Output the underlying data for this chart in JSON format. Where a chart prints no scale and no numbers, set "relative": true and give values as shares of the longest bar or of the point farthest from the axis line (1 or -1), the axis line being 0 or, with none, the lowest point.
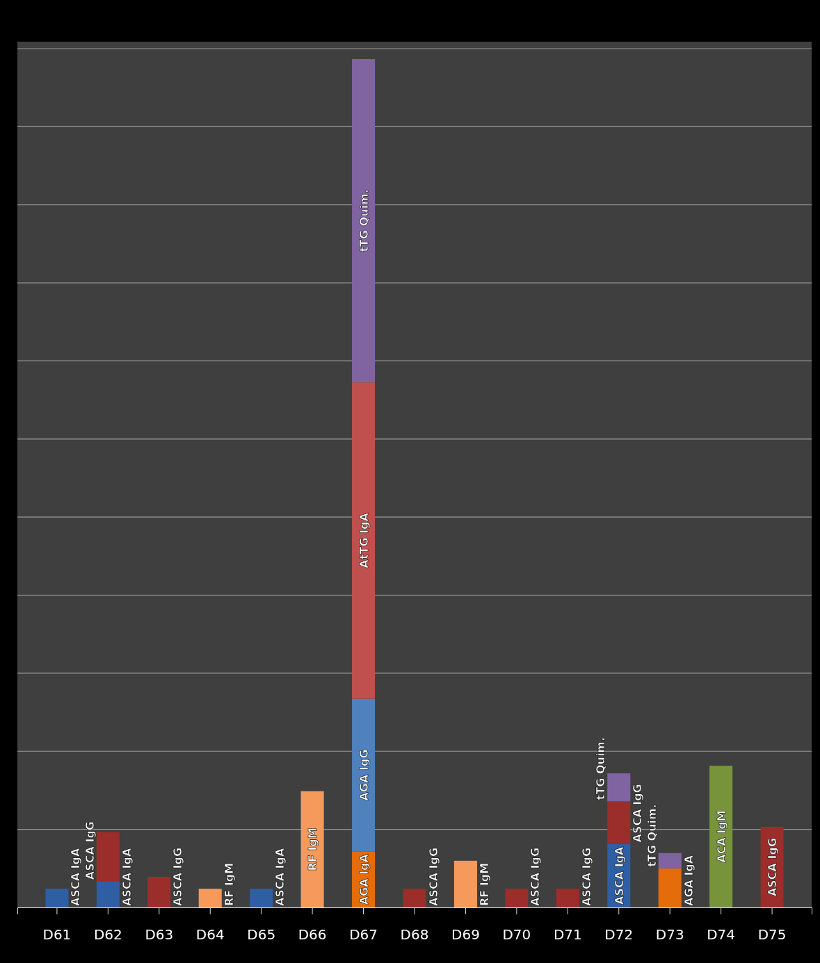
{
  "chart_data": {
    "type": "bar",
    "stacked": true,
    "relative": true,
    "grid": true,
    "legend": false,
    "categories": [
      "D61",
      "D62",
      "D63",
      "D64",
      "D65",
      "D66",
      "D67",
      "D68",
      "D69",
      "D70",
      "D71",
      "D72",
      "D73",
      "D74",
      "D75"
    ],
    "series": [
      {
        "name": "ASCA IgA",
        "color": "#2e5fa3",
        "values": [
          0.022,
          0.031,
          null,
          null,
          0.022,
          null,
          null,
          null,
          null,
          null,
          null,
          0.075,
          null,
          null,
          null
        ]
      },
      {
        "name": "ASCA IgG",
        "color": "#9b2d2a",
        "values": [
          null,
          0.058,
          0.036,
          null,
          null,
          null,
          null,
          0.022,
          null,
          0.022,
          0.022,
          0.05,
          null,
          null,
          0.095
        ]
      },
      {
        "name": "RF IgM",
        "color": "#f59a5a",
        "values": [
          null,
          null,
          null,
          0.022,
          null,
          0.137,
          null,
          null,
          0.055,
          null,
          null,
          null,
          null,
          null,
          null
        ]
      },
      {
        "name": "AGA IgA",
        "color": "#e46c0a",
        "values": [
          null,
          null,
          null,
          null,
          null,
          null,
          0.066,
          null,
          null,
          null,
          null,
          null,
          0.046,
          null,
          null
        ]
      },
      {
        "name": "AGA IgG",
        "color": "#4f81bd",
        "values": [
          null,
          null,
          null,
          null,
          null,
          null,
          0.18,
          null,
          null,
          null,
          null,
          null,
          null,
          null,
          null
        ]
      },
      {
        "name": "AtTG IgA",
        "color": "#c0504d",
        "values": [
          null,
          null,
          null,
          null,
          null,
          null,
          0.373,
          null,
          null,
          null,
          null,
          null,
          null,
          null,
          null
        ]
      },
      {
        "name": "tTG Quim.",
        "color": "#8064a2",
        "values": [
          null,
          null,
          null,
          null,
          null,
          null,
          0.381,
          null,
          null,
          null,
          null,
          0.033,
          0.018,
          null,
          null
        ]
      },
      {
        "name": "ACA IgM",
        "color": "#77933c",
        "values": [
          null,
          null,
          null,
          null,
          null,
          null,
          null,
          null,
          null,
          null,
          null,
          null,
          null,
          0.167,
          null
        ]
      }
    ]
  }
}
